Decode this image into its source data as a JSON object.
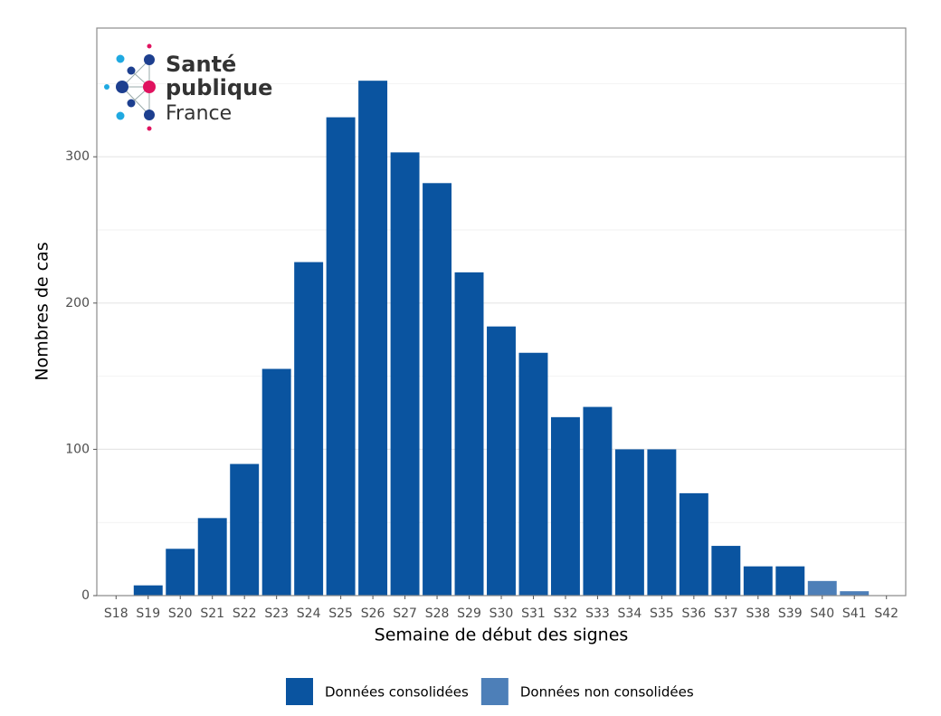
{
  "chart_data": {
    "type": "bar",
    "stacked": true,
    "logo": {
      "line1": "Santé",
      "line2": "publique",
      "line3": "France"
    },
    "x_label": "Semaine de début des signes",
    "y_label": "Nombres de cas",
    "categories": [
      "S18",
      "S19",
      "S20",
      "S21",
      "S22",
      "S23",
      "S24",
      "S25",
      "S26",
      "S27",
      "S28",
      "S29",
      "S30",
      "S31",
      "S32",
      "S33",
      "S34",
      "S35",
      "S36",
      "S37",
      "S38",
      "S39",
      "S40",
      "S41",
      "S42"
    ],
    "series": [
      {
        "name": "Données consolidées",
        "color": "#0a54a0",
        "values": [
          0,
          7,
          32,
          53,
          90,
          155,
          228,
          327,
          352,
          303,
          282,
          221,
          184,
          166,
          122,
          129,
          100,
          100,
          70,
          34,
          20,
          20,
          null,
          null,
          null
        ]
      },
      {
        "name": "Données non consolidées",
        "color": "#4d7fb8",
        "values": [
          null,
          null,
          null,
          null,
          null,
          null,
          null,
          null,
          null,
          null,
          null,
          null,
          null,
          null,
          null,
          null,
          null,
          null,
          null,
          null,
          null,
          null,
          10,
          3,
          0
        ]
      }
    ],
    "ylim": [
      0,
      388
    ],
    "yticks": [
      0,
      100,
      200,
      300
    ],
    "minor_yticks": [
      50,
      150,
      250,
      350
    ],
    "grid": true,
    "legend_position": "bottom"
  }
}
